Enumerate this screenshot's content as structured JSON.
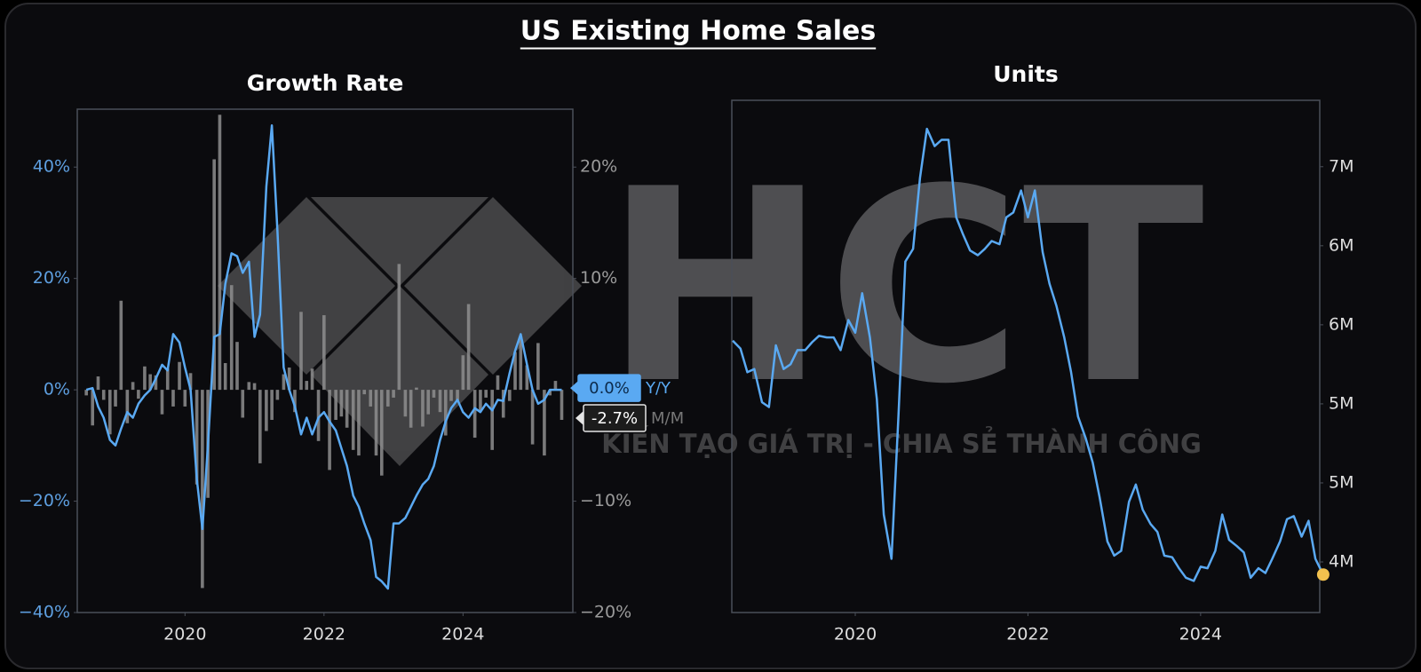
{
  "title": "US Existing Home Sales",
  "watermark": {
    "brand": "HCT",
    "tagline": "KIẾN TẠO GIÁ TRỊ - CHIA SẺ THÀNH CÔNG"
  },
  "chart_data": [
    {
      "type": "combo",
      "title": "Growth Rate",
      "x": [
        2018.58,
        2018.67,
        2018.75,
        2018.83,
        2018.92,
        2019,
        2019.08,
        2019.17,
        2019.25,
        2019.33,
        2019.42,
        2019.5,
        2019.58,
        2019.67,
        2019.75,
        2019.83,
        2019.92,
        2020,
        2020.08,
        2020.17,
        2020.25,
        2020.33,
        2020.42,
        2020.5,
        2020.58,
        2020.67,
        2020.75,
        2020.83,
        2020.92,
        2021,
        2021.08,
        2021.17,
        2021.25,
        2021.33,
        2021.42,
        2021.5,
        2021.58,
        2021.67,
        2021.75,
        2021.83,
        2021.92,
        2022,
        2022.08,
        2022.17,
        2022.25,
        2022.33,
        2022.42,
        2022.5,
        2022.58,
        2022.67,
        2022.75,
        2022.83,
        2022.92,
        2023,
        2023.08,
        2023.17,
        2023.25,
        2023.33,
        2023.42,
        2023.5,
        2023.58,
        2023.67,
        2023.75,
        2023.83,
        2023.92,
        2024,
        2024.08,
        2024.17,
        2024.25,
        2024.33,
        2024.42,
        2024.5,
        2024.58,
        2024.67,
        2024.75,
        2024.83,
        2024.92,
        2025,
        2025.08,
        2025.17,
        2025.25,
        2025.33,
        2025.42
      ],
      "xlim": [
        2018.45,
        2025.58
      ],
      "xticks": [
        2020,
        2022,
        2024
      ],
      "ylim": [
        -40,
        50.4
      ],
      "yticks": [
        {
          "value": 40,
          "label": "40%"
        },
        {
          "value": 20,
          "label": "20%"
        },
        {
          "value": 0,
          "label": "0%"
        },
        {
          "value": -20,
          "label": "−20%"
        },
        {
          "value": -40,
          "label": "−40%"
        }
      ],
      "ytick_color": "#5e9fe0",
      "y2lim": [
        -20,
        25.2
      ],
      "y2ticks": [
        {
          "value": 20,
          "label": "20%"
        },
        {
          "value": 10,
          "label": "10%"
        },
        {
          "value": 0,
          "label": "0%"
        },
        {
          "value": -10,
          "label": "−10%"
        },
        {
          "value": -20,
          "label": "−20%"
        }
      ],
      "y2tick_color": "#9a9a9a",
      "series": [
        {
          "name": "Y/Y",
          "type": "line",
          "axis": "y",
          "color": "#5aa9f2",
          "values": [
            0,
            0.3,
            -3,
            -5,
            -9,
            -10,
            -7,
            -4,
            -5,
            -2.5,
            -1,
            0,
            2,
            4.5,
            3.5,
            10,
            8.5,
            4,
            0,
            -16,
            -25,
            -10,
            9.5,
            10,
            19,
            24.5,
            24,
            21,
            23,
            9.5,
            13.5,
            36.5,
            47.5,
            28.5,
            4,
            0,
            -3,
            -8,
            -5,
            -8,
            -5,
            -4,
            -5.7,
            -7.3,
            -10.5,
            -13.7,
            -19,
            -21,
            -24,
            -27,
            -33.6,
            -34.4,
            -35.7,
            -24,
            -24,
            -23,
            -21,
            -19,
            -17,
            -16,
            -13.7,
            -9,
            -5.7,
            -3.3,
            -1.8,
            -4,
            -5,
            -3.3,
            -4,
            -2.5,
            -3.7,
            -1.8,
            -2,
            3,
            7,
            10,
            4.6,
            0,
            -2.5,
            -1.8,
            0,
            0,
            0
          ],
          "value_labels": [
            null,
            null,
            null,
            null,
            null,
            null,
            null,
            null,
            null,
            null,
            null,
            null,
            null,
            null,
            null,
            null,
            null,
            null,
            null,
            null,
            null,
            null,
            null,
            null,
            null,
            null,
            null,
            null,
            null,
            null,
            null,
            null,
            null,
            null,
            null,
            null,
            null,
            null,
            null,
            null,
            null,
            null,
            null,
            null,
            null,
            null,
            null,
            null,
            null,
            null,
            null,
            null,
            null,
            null,
            null,
            null,
            null,
            null,
            null,
            null,
            null,
            null,
            null,
            null,
            null,
            null,
            null,
            null,
            null,
            null,
            null,
            null,
            null,
            null,
            null,
            null,
            null,
            null,
            null,
            null,
            null,
            null,
            "0.0%"
          ]
        },
        {
          "name": "M/M",
          "type": "bar",
          "axis": "y2",
          "color": "#8e8e8e",
          "values": [
            -0.5,
            -3.2,
            1.2,
            -0.9,
            -4,
            -1.5,
            8,
            -3,
            0.7,
            -0.8,
            2.1,
            1.4,
            1.3,
            -2.2,
            1.9,
            -1.5,
            2.5,
            -1.5,
            1.5,
            -8.5,
            -17.8,
            -9.7,
            20.7,
            24.7,
            2.4,
            9.4,
            4.3,
            -2.5,
            0.7,
            0.6,
            -6.6,
            -3.7,
            -2.7,
            -0.9,
            1.4,
            2,
            -2,
            7,
            0.8,
            1.9,
            -4.6,
            6.7,
            -7.2,
            -2.7,
            -2.4,
            -3.4,
            -5.4,
            -5.9,
            -0.4,
            -1.5,
            -5.9,
            -7.7,
            -1.5,
            -0.7,
            11.3,
            -2.4,
            -3.4,
            0.2,
            -3.3,
            -2.2,
            -0.7,
            -2,
            -4.1,
            -1,
            -1,
            3.1,
            7.7,
            -4.3,
            -1.9,
            -0.7,
            -5.4,
            1.3,
            -2.5,
            -1,
            3.4,
            4.8,
            2.2,
            -4.9,
            4.2,
            -5.9,
            -0.5,
            0.8,
            -2.7
          ],
          "value_labels": [
            null,
            null,
            null,
            null,
            null,
            null,
            null,
            null,
            null,
            null,
            null,
            null,
            null,
            null,
            null,
            null,
            null,
            null,
            null,
            null,
            null,
            null,
            null,
            null,
            null,
            null,
            null,
            null,
            null,
            null,
            null,
            null,
            null,
            null,
            null,
            null,
            null,
            null,
            null,
            null,
            null,
            null,
            null,
            null,
            null,
            null,
            null,
            null,
            null,
            null,
            null,
            null,
            null,
            null,
            null,
            null,
            null,
            null,
            null,
            null,
            null,
            null,
            null,
            null,
            null,
            null,
            null,
            null,
            null,
            null,
            null,
            null,
            null,
            null,
            null,
            null,
            null,
            null,
            null,
            null,
            null,
            null,
            "-2.7%"
          ]
        }
      ]
    },
    {
      "type": "line",
      "title": "Units",
      "color": "#5aa9f2",
      "end_marker_color": "#f2c14e",
      "y_axis_side": "right",
      "x": [
        2018.58,
        2018.67,
        2018.75,
        2018.83,
        2018.92,
        2019,
        2019.08,
        2019.17,
        2019.25,
        2019.33,
        2019.42,
        2019.5,
        2019.58,
        2019.67,
        2019.75,
        2019.83,
        2019.92,
        2020,
        2020.08,
        2020.17,
        2020.25,
        2020.33,
        2020.42,
        2020.5,
        2020.58,
        2020.67,
        2020.75,
        2020.83,
        2020.92,
        2021,
        2021.08,
        2021.17,
        2021.25,
        2021.33,
        2021.42,
        2021.5,
        2021.58,
        2021.67,
        2021.75,
        2021.83,
        2021.92,
        2022,
        2022.08,
        2022.17,
        2022.25,
        2022.33,
        2022.42,
        2022.5,
        2022.58,
        2022.67,
        2022.75,
        2022.83,
        2022.92,
        2023,
        2023.08,
        2023.17,
        2023.25,
        2023.33,
        2023.42,
        2023.5,
        2023.58,
        2023.67,
        2023.75,
        2023.83,
        2023.92,
        2024,
        2024.08,
        2024.17,
        2024.25,
        2024.33,
        2024.42,
        2024.5,
        2024.58,
        2024.67,
        2024.75,
        2024.83,
        2024.92,
        2025,
        2025.08,
        2025.17,
        2025.25,
        2025.33,
        2025.42
      ],
      "xlim": [
        2018.57,
        2025.38
      ],
      "xticks": [
        2020,
        2022,
        2024
      ],
      "ylim": [
        3.68,
        6.92
      ],
      "yticks": [
        {
          "value": 4,
          "label": "4M"
        },
        {
          "value": 4.5,
          "label": "5M"
        },
        {
          "value": 5,
          "label": "5M"
        },
        {
          "value": 5.5,
          "label": "6M"
        },
        {
          "value": 6,
          "label": "6M"
        },
        {
          "value": 6.5,
          "label": "7M"
        }
      ],
      "ytick_color": "#dddddd",
      "values": [
        5.4,
        5.35,
        5.2,
        5.22,
        5.01,
        4.98,
        5.37,
        5.22,
        5.25,
        5.34,
        5.34,
        5.39,
        5.43,
        5.42,
        5.42,
        5.34,
        5.53,
        5.45,
        5.7,
        5.42,
        5.03,
        4.3,
        4.02,
        4.92,
        5.9,
        5.98,
        6.43,
        6.74,
        6.63,
        6.67,
        6.67,
        6.18,
        6.07,
        5.97,
        5.94,
        5.98,
        6.03,
        6.01,
        6.18,
        6.21,
        6.35,
        6.18,
        6.35,
        5.96,
        5.76,
        5.62,
        5.42,
        5.2,
        4.92,
        4.78,
        4.63,
        4.41,
        4.13,
        4.04,
        4.07,
        4.38,
        4.49,
        4.33,
        4.24,
        4.19,
        4.04,
        4.03,
        3.96,
        3.9,
        3.88,
        3.97,
        3.96,
        4.07,
        4.3,
        4.14,
        4.1,
        4.06,
        3.9,
        3.96,
        3.93,
        4.02,
        4.13,
        4.27,
        4.29,
        4.16,
        4.26,
        4.02,
        3.92
      ]
    }
  ]
}
